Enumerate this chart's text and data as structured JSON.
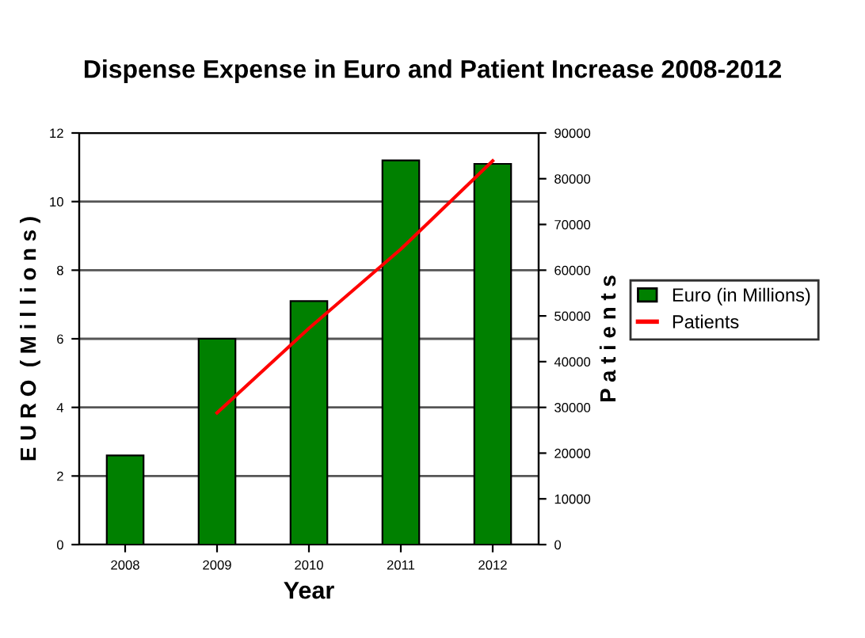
{
  "chart_data": {
    "type": "bar",
    "title": "Dispense Expense in Euro and Patient Increase 2008-2012",
    "xlabel": "Year",
    "ylabel": "E U R O  ( M i l l i o n s )",
    "y2label": "P a t i e n t s",
    "categories": [
      "2008",
      "2009",
      "2010",
      "2011",
      "2012"
    ],
    "series": [
      {
        "name": "Euro (in Millions)",
        "color": "#008000",
        "values": [
          2.6,
          6.0,
          7.1,
          11.2,
          11.1
        ]
      },
      {
        "name": "Patients",
        "type": "line",
        "axis": "y2",
        "color": "#ff0000",
        "values": [
          null,
          28800,
          47300,
          64600,
          83900
        ]
      }
    ],
    "ylim": [
      0,
      12
    ],
    "yticks": [
      0,
      2,
      4,
      6,
      8,
      10,
      12
    ],
    "y2lim": [
      0,
      90000
    ],
    "y2ticks": [
      0,
      10000,
      20000,
      30000,
      40000,
      50000,
      60000,
      70000,
      80000,
      90000
    ],
    "grid": "y",
    "legend": "right",
    "marker": "none",
    "line_style": "solid"
  }
}
